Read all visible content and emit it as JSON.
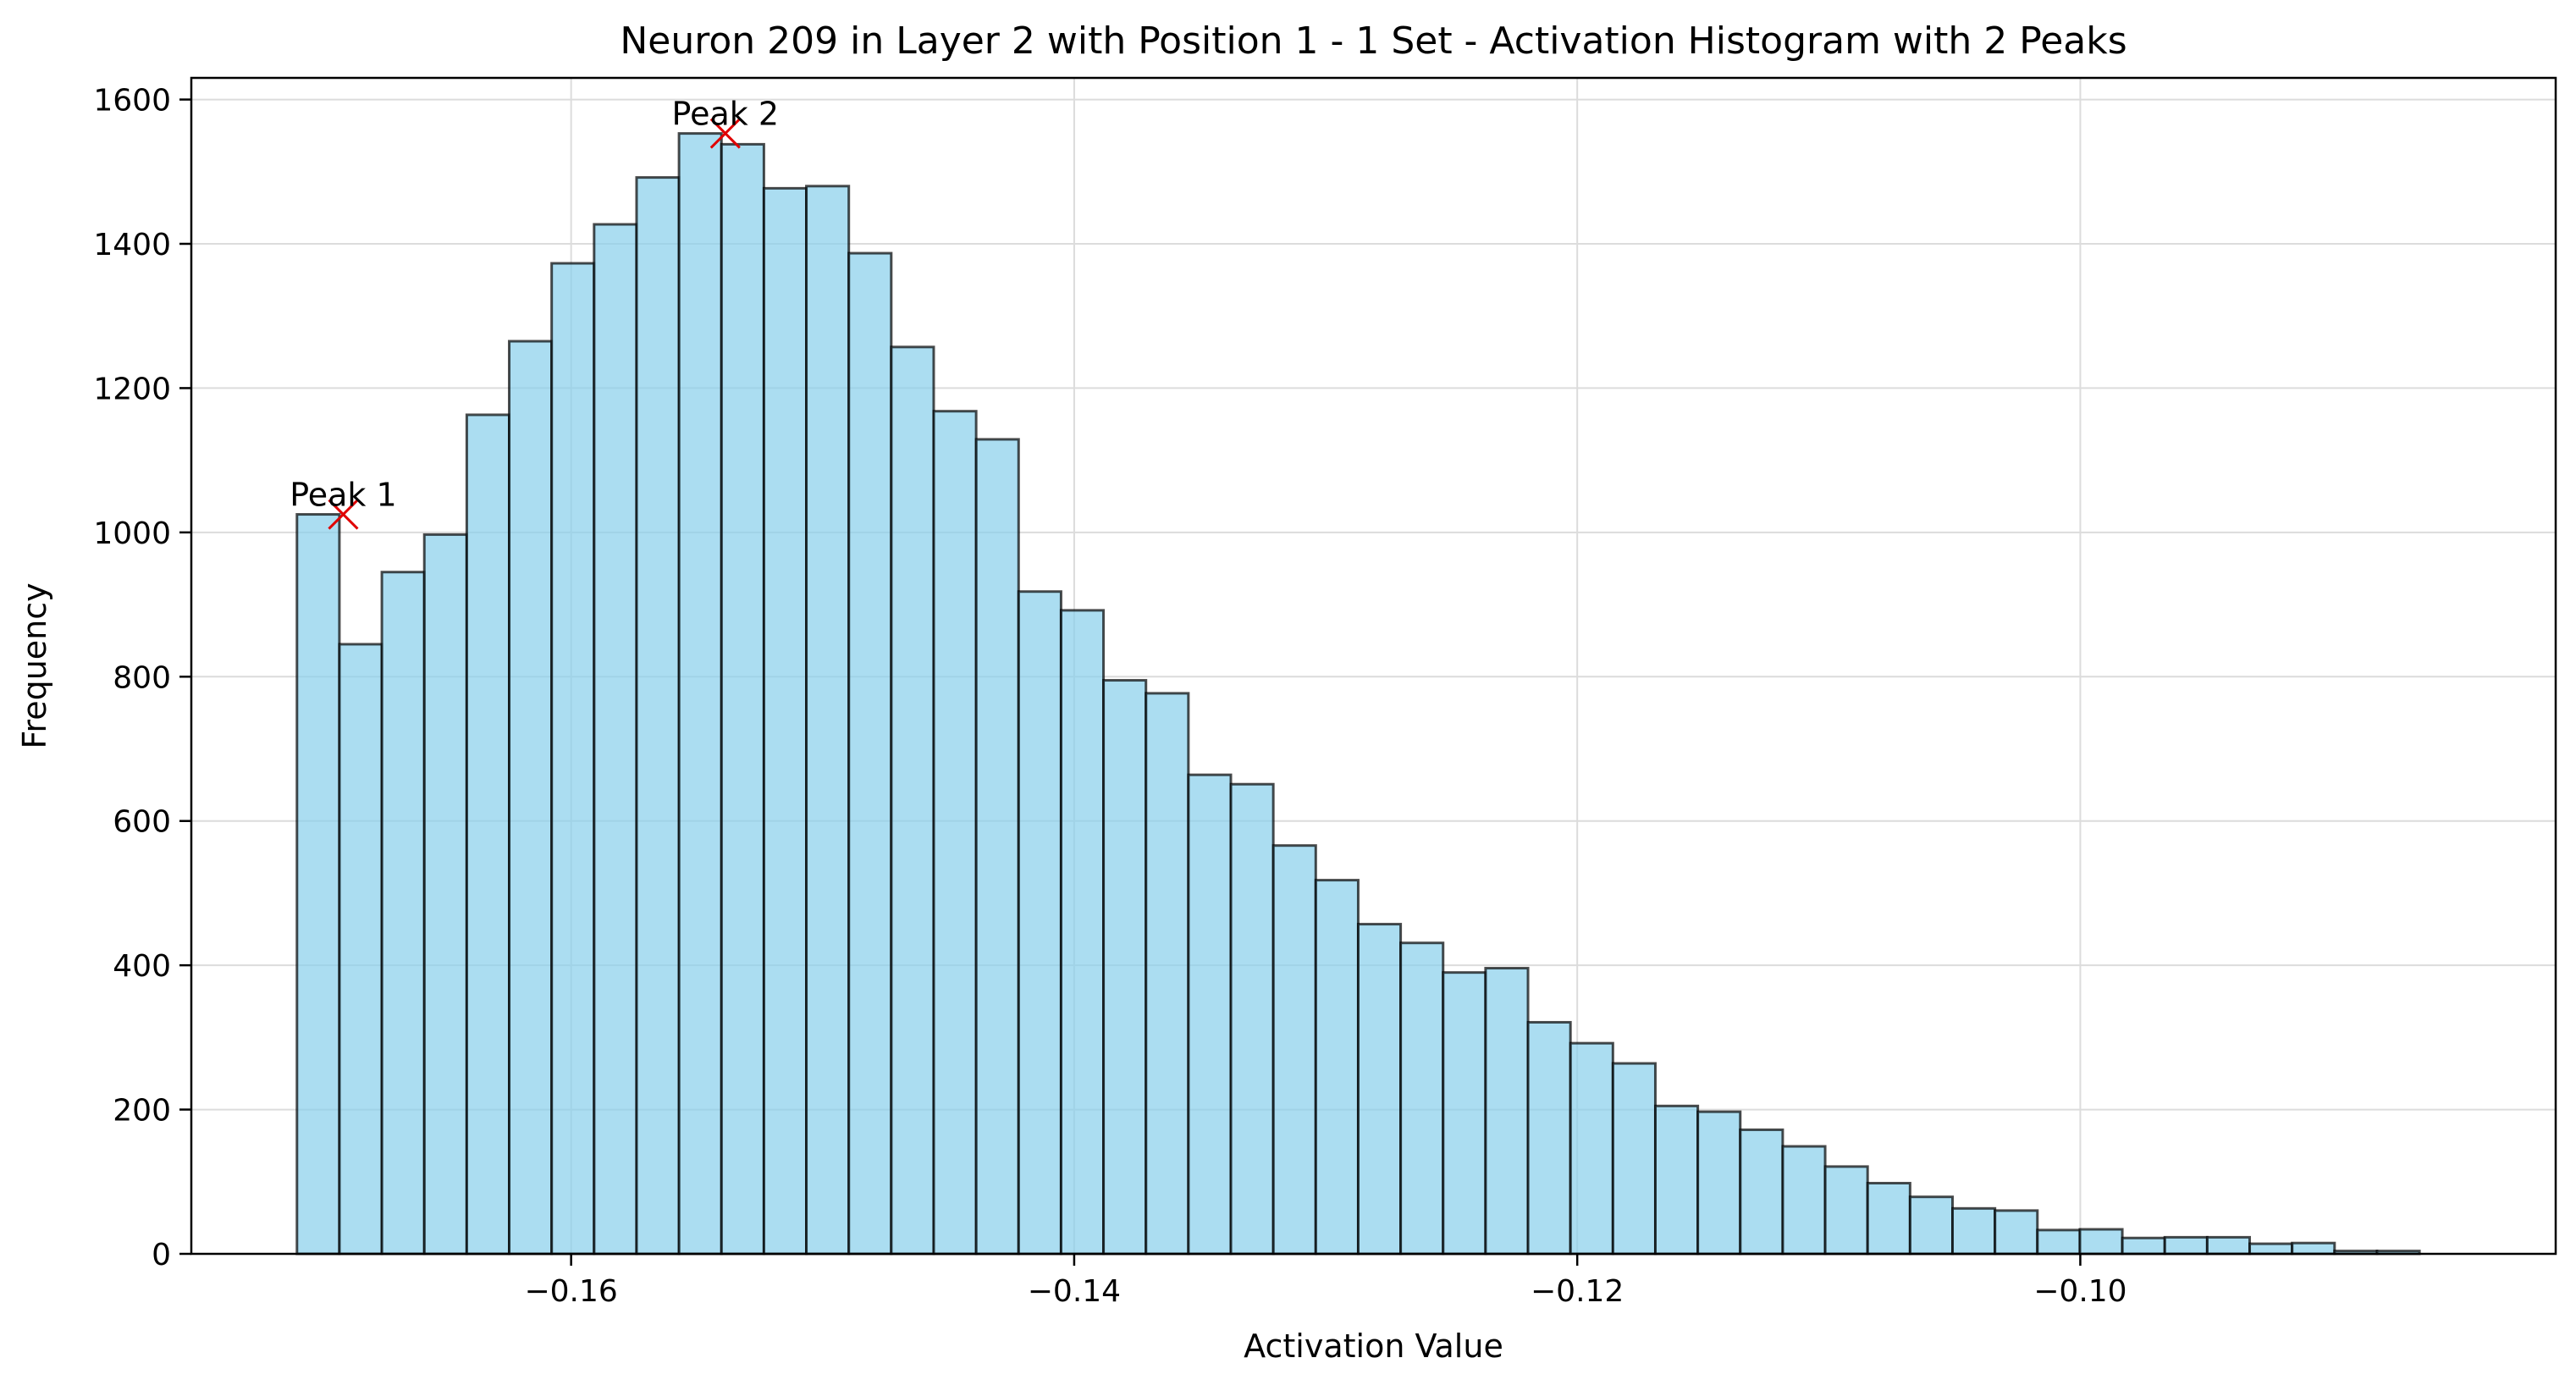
{
  "chart_data": {
    "type": "bar",
    "title": "Neuron 209 in Layer 2 with Position 1 - 1 Set - Activation Histogram with 2 Peaks",
    "xlabel": "Activation Value",
    "ylabel": "Frequency",
    "xlim": [
      -0.1751,
      -0.0811
    ],
    "ylim": [
      0,
      1630
    ],
    "grid": true,
    "colors": {
      "bar_fill": "#87CEEB",
      "bar_edge": "#000000",
      "peak_marker": "#e00000"
    },
    "x_ticks": [
      {
        "value": -0.16,
        "label": "−0.16"
      },
      {
        "value": -0.14,
        "label": "−0.14"
      },
      {
        "value": -0.12,
        "label": "−0.12"
      },
      {
        "value": -0.1,
        "label": "−0.10"
      }
    ],
    "y_ticks": [
      {
        "value": 0,
        "label": "0"
      },
      {
        "value": 200,
        "label": "200"
      },
      {
        "value": 400,
        "label": "400"
      },
      {
        "value": 600,
        "label": "600"
      },
      {
        "value": 800,
        "label": "800"
      },
      {
        "value": 1000,
        "label": "1000"
      },
      {
        "value": 1200,
        "label": "1200"
      },
      {
        "value": 1400,
        "label": "1400"
      },
      {
        "value": 1600,
        "label": "1600"
      }
    ],
    "bin_start": -0.1709,
    "bin_width": 0.0016877,
    "values": [
      1025,
      845,
      945,
      997,
      1163,
      1265,
      1373,
      1427,
      1492,
      1553,
      1538,
      1477,
      1480,
      1387,
      1257,
      1168,
      1129,
      918,
      892,
      795,
      777,
      664,
      651,
      566,
      518,
      457,
      431,
      390,
      396,
      321,
      292,
      264,
      205,
      197,
      172,
      149,
      121,
      98,
      79,
      63,
      60,
      33,
      34,
      22,
      23,
      23,
      14,
      15,
      4,
      4
    ],
    "peaks": [
      {
        "label": "Peak 1",
        "x": -0.16906,
        "y": 1025
      },
      {
        "label": "Peak 2",
        "x": -0.15387,
        "y": 1553
      }
    ]
  }
}
